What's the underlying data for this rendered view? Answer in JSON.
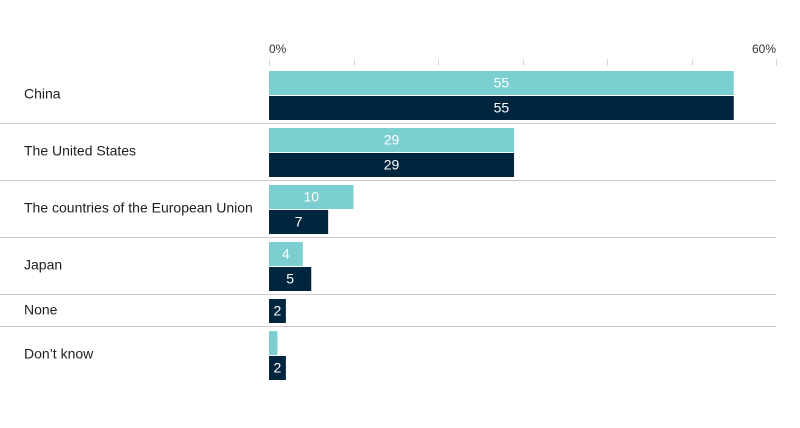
{
  "chart_data": {
    "type": "bar",
    "orientation": "horizontal",
    "categories": [
      "China",
      "The United States",
      "The countries of the European Union",
      "Japan",
      "None",
      "Don’t know"
    ],
    "series": [
      {
        "color": "#7ccfd1",
        "values": [
          55,
          29,
          10,
          4,
          null,
          1
        ]
      },
      {
        "color": "#00253e",
        "values": [
          55,
          29,
          7,
          5,
          2,
          2
        ]
      }
    ],
    "value_labels": [
      [
        "55",
        "29",
        "10",
        "4",
        "",
        ""
      ],
      [
        "55",
        "29",
        "7",
        "5",
        "2",
        "2"
      ]
    ],
    "xlim": [
      0,
      60
    ],
    "tick_labels": [
      "0%",
      "60%"
    ],
    "gridlines": [
      0,
      10,
      20,
      30,
      40,
      50,
      60
    ],
    "grid": true,
    "colors": {
      "grid": "#d9d9d9",
      "separator": "#c9c9c9",
      "label_on_light": "#ffffff",
      "label_on_dark": "#ffffff"
    }
  }
}
